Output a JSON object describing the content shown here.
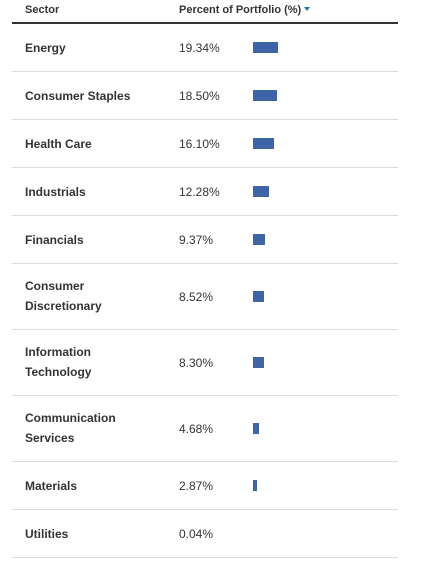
{
  "table": {
    "header": {
      "sector": "Sector",
      "percent": "Percent of Portfolio (%)",
      "sort_icon": "caret-down-icon"
    },
    "bar_color": "#3f64a6",
    "rows": [
      {
        "sector": "Energy",
        "percent": "19.34%",
        "value": 19.34
      },
      {
        "sector": "Consumer Staples",
        "percent": "18.50%",
        "value": 18.5
      },
      {
        "sector": "Health Care",
        "percent": "16.10%",
        "value": 16.1
      },
      {
        "sector": "Industrials",
        "percent": "12.28%",
        "value": 12.28
      },
      {
        "sector": "Financials",
        "percent": "9.37%",
        "value": 9.37
      },
      {
        "sector": "Consumer Discretionary",
        "percent": "8.52%",
        "value": 8.52
      },
      {
        "sector": "Information Technology",
        "percent": "8.30%",
        "value": 8.3
      },
      {
        "sector": "Communication Services",
        "percent": "4.68%",
        "value": 4.68
      },
      {
        "sector": "Materials",
        "percent": "2.87%",
        "value": 2.87
      },
      {
        "sector": "Utilities",
        "percent": "0.04%",
        "value": 0.04
      }
    ]
  }
}
